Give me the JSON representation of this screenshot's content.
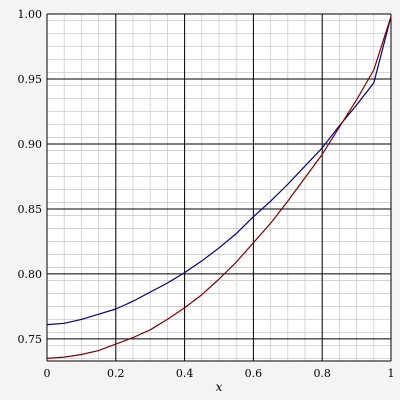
{
  "chart_data": {
    "type": "line",
    "title": "",
    "xlabel": "x",
    "ylabel": "",
    "xlim": [
      0,
      1
    ],
    "ylim": [
      0.733,
      1.0
    ],
    "xticks": [
      "0",
      "0.2",
      "0.4",
      "0.6",
      "0.8",
      "1"
    ],
    "yticks": [
      "0.75",
      "0.80",
      "0.85",
      "0.90",
      "0.95",
      "1.00"
    ],
    "grid": true,
    "series": [
      {
        "color": "#000080",
        "x": [
          0,
          0.05,
          0.1,
          0.15,
          0.2,
          0.25,
          0.3,
          0.35,
          0.4,
          0.45,
          0.5,
          0.55,
          0.6,
          0.65,
          0.7,
          0.75,
          0.8,
          0.85,
          0.9,
          0.95,
          1.0
        ],
        "y": [
          0.761,
          0.762,
          0.765,
          0.769,
          0.773,
          0.779,
          0.786,
          0.793,
          0.801,
          0.81,
          0.82,
          0.831,
          0.844,
          0.856,
          0.869,
          0.883,
          0.897,
          0.914,
          0.93,
          0.947,
          0.998
        ]
      },
      {
        "color": "#800000",
        "x": [
          0,
          0.05,
          0.1,
          0.15,
          0.2,
          0.25,
          0.3,
          0.35,
          0.4,
          0.45,
          0.5,
          0.55,
          0.6,
          0.65,
          0.7,
          0.75,
          0.8,
          0.85,
          0.9,
          0.95,
          1.0
        ],
        "y": [
          0.735,
          0.736,
          0.738,
          0.741,
          0.746,
          0.751,
          0.757,
          0.765,
          0.774,
          0.784,
          0.796,
          0.809,
          0.824,
          0.839,
          0.856,
          0.874,
          0.892,
          0.913,
          0.934,
          0.957,
          0.998
        ]
      }
    ]
  }
}
